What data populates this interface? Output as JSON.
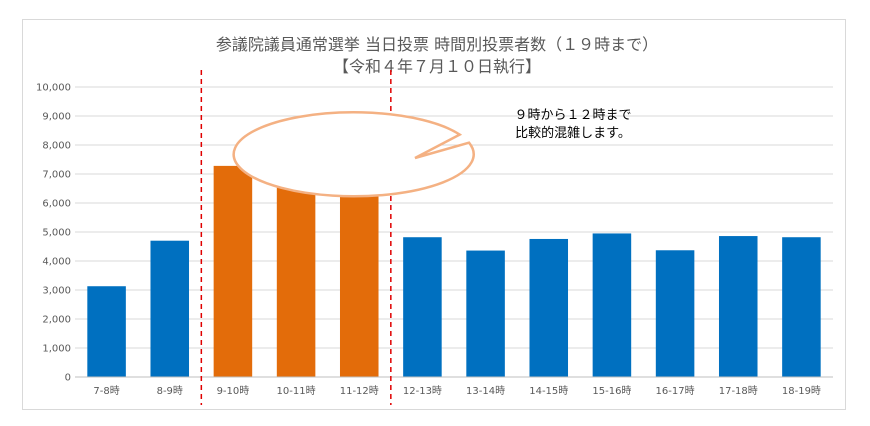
{
  "chart_data": {
    "type": "bar",
    "title": "参議院議員通常選挙 当日投票 時間別投票者数（１９時まで）",
    "subtitle": "【令和４年７月１０日執行】",
    "xlabel": "",
    "ylabel": "",
    "ylim": [
      0,
      10000
    ],
    "yticks": [
      "0",
      "1,000",
      "2,000",
      "3,000",
      "4,000",
      "5,000",
      "6,000",
      "7,000",
      "8,000",
      "9,000",
      "10,000"
    ],
    "categories": [
      "7-8時",
      "8-9時",
      "9-10時",
      "10-11時",
      "11-12時",
      "12-13時",
      "13-14時",
      "14-15時",
      "15-16時",
      "16-17時",
      "17-18時",
      "18-19時"
    ],
    "values": [
      3130,
      4700,
      7280,
      8710,
      7250,
      4820,
      4360,
      4760,
      4950,
      4370,
      4860,
      4820
    ],
    "highlight_categories": [
      "9-10時",
      "10-11時",
      "11-12時"
    ],
    "grid": true,
    "colors": {
      "normal": "#0070c0",
      "highlight": "#e36c0a",
      "divider": "#e00000",
      "callout_fill": "#ffffff",
      "callout_stroke": "#f4b183"
    },
    "annotation": {
      "line1": "９時から１２時まで",
      "line2": "比較的混雑します。"
    }
  }
}
